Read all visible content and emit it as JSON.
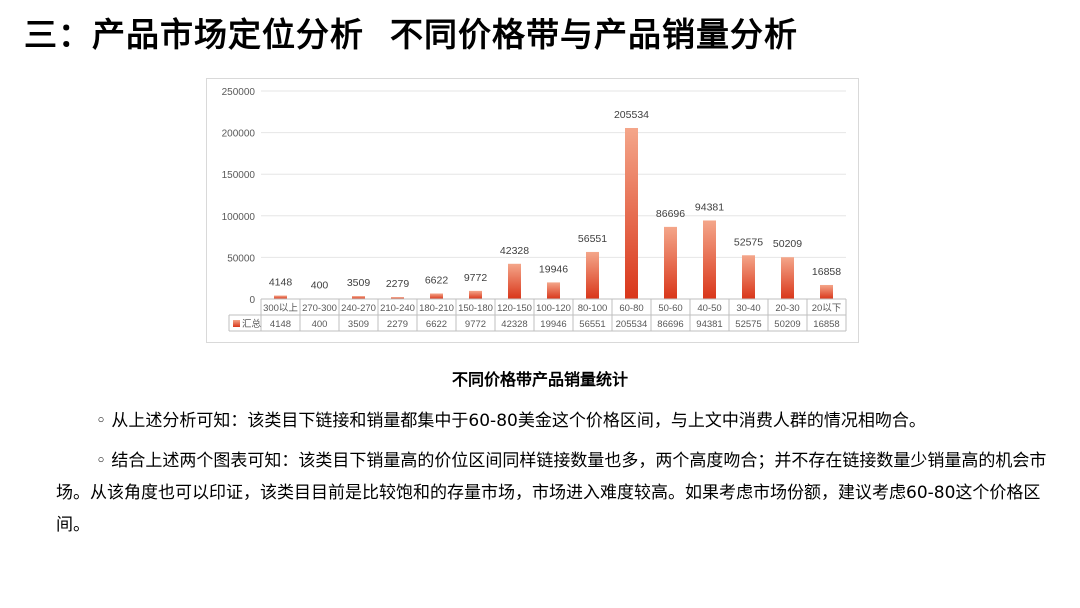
{
  "slide": {
    "title_prefix": "三：",
    "title_part1": "产品市场定位分析",
    "title_part2": "不同价格带与产品销量分析"
  },
  "chart_data": {
    "type": "bar",
    "title": "",
    "caption": "不同价格带产品销量统计",
    "categories": [
      "300以上",
      "270-300",
      "240-270",
      "210-240",
      "180-210",
      "150-180",
      "120-150",
      "100-120",
      "80-100",
      "60-80",
      "50-60",
      "40-50",
      "30-40",
      "20-30",
      "20以下"
    ],
    "series": [
      {
        "name": "汇总",
        "values": [
          4148,
          400,
          3509,
          2279,
          6622,
          9772,
          42328,
          19946,
          56551,
          205534,
          86696,
          94381,
          52575,
          50209,
          16858
        ]
      }
    ],
    "yticks": [
      "0",
      "50000",
      "100000",
      "150000",
      "200000",
      "250000"
    ],
    "ylim": [
      0,
      250000
    ],
    "grid": true,
    "data_table": true,
    "colors": {
      "bar_top": "#f4a68a",
      "bar_bottom": "#d9361a",
      "grid": "#e6e6e6",
      "axis_text": "#595959"
    }
  },
  "text": {
    "para1": "◦ 从上述分析可知：该类目下链接和销量都集中于60-80美金这个价格区间，与上文中消费人群的情况相吻合。",
    "para2": "◦ 结合上述两个图表可知：该类目下销量高的价位区间同样链接数量也多，两个高度吻合；并不存在链接数量少销量高的机会市场。从该角度也可以印证，该类目目前是比较饱和的存量市场，市场进入难度较高。如果考虑市场份额，建议考虑60-80这个价格区间。"
  }
}
